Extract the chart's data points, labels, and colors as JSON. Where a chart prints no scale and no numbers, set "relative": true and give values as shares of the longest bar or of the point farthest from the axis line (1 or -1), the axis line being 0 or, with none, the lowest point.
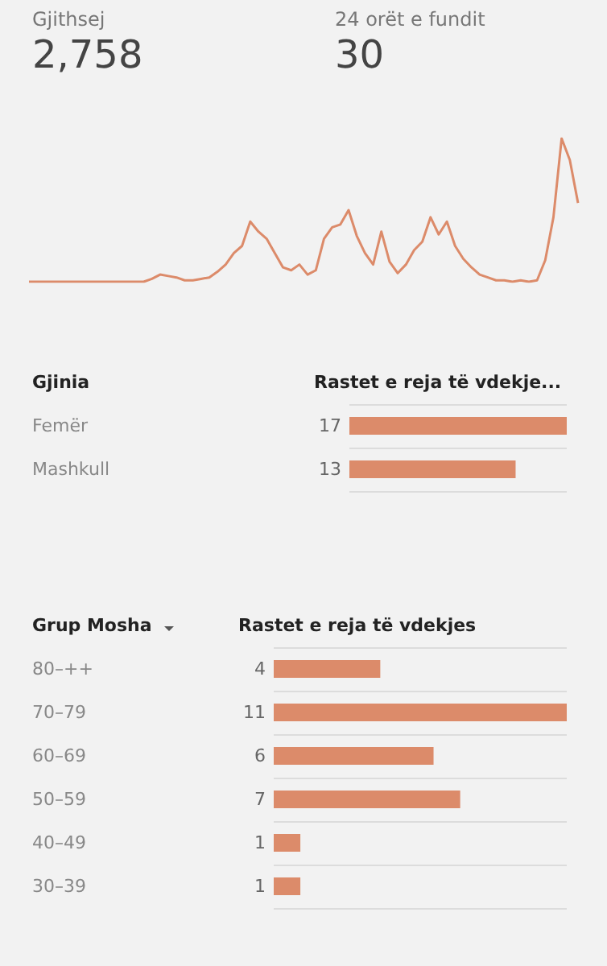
{
  "chart_data": [
    {
      "type": "other",
      "annotations": [
        "Gjithsej",
        "2,758",
        "24 orët e fundit",
        "30"
      ]
    },
    {
      "type": "line",
      "relative": true,
      "color": "#dc8b6a",
      "grid": false,
      "categories": [
        null,
        null,
        null,
        null,
        null,
        null,
        null,
        null,
        null,
        null,
        null,
        null,
        null,
        null,
        null,
        null,
        null,
        null,
        null,
        null,
        null,
        null,
        null,
        null,
        null,
        null,
        null,
        null,
        null,
        null,
        null,
        null,
        null,
        null,
        null,
        null,
        null,
        null,
        null,
        null,
        null,
        null,
        null,
        null,
        null,
        null,
        null,
        null,
        null,
        null,
        null,
        null,
        null,
        null,
        null,
        null,
        null,
        null,
        null,
        null,
        null,
        null,
        null,
        null,
        null,
        null,
        null,
        null
      ],
      "values": [
        0,
        0,
        0,
        0,
        0,
        0,
        0,
        0,
        0,
        0,
        0,
        0,
        0,
        0,
        0,
        0.02,
        0.05,
        0.04,
        0.03,
        0.01,
        0.01,
        0.02,
        0.03,
        0.07,
        0.12,
        0.2,
        0.25,
        0.42,
        0.35,
        0.3,
        0.2,
        0.1,
        0.08,
        0.12,
        0.05,
        0.08,
        0.3,
        0.38,
        0.4,
        0.5,
        0.32,
        0.2,
        0.12,
        0.35,
        0.14,
        0.06,
        0.12,
        0.22,
        0.28,
        0.45,
        0.33,
        0.42,
        0.25,
        0.16,
        0.1,
        0.05,
        0.03,
        0.01,
        0.01,
        0,
        0.01,
        0,
        0.01,
        0.15,
        0.45,
        1,
        0.85,
        0.55
      ]
    },
    {
      "type": "bar",
      "orientation": "horizontal",
      "ylabel": "Gjinia",
      "xlabel": "Rastet e reja të vdekje...",
      "categories": [
        "Femër",
        "Mashkull"
      ],
      "values": [
        17,
        13
      ],
      "color": "#dc8b6a",
      "data_labels": true,
      "grid": "y"
    },
    {
      "type": "bar",
      "orientation": "horizontal",
      "ylabel": "Grup Mosha",
      "xlabel": "Rastet e reja të vdekjes",
      "categories": [
        "80–++",
        "70–79",
        "60–69",
        "50–59",
        "40–49",
        "30–39"
      ],
      "values": [
        4,
        11,
        6,
        7,
        1,
        1
      ],
      "color": "#dc8b6a",
      "data_labels": true,
      "grid": "y"
    }
  ]
}
